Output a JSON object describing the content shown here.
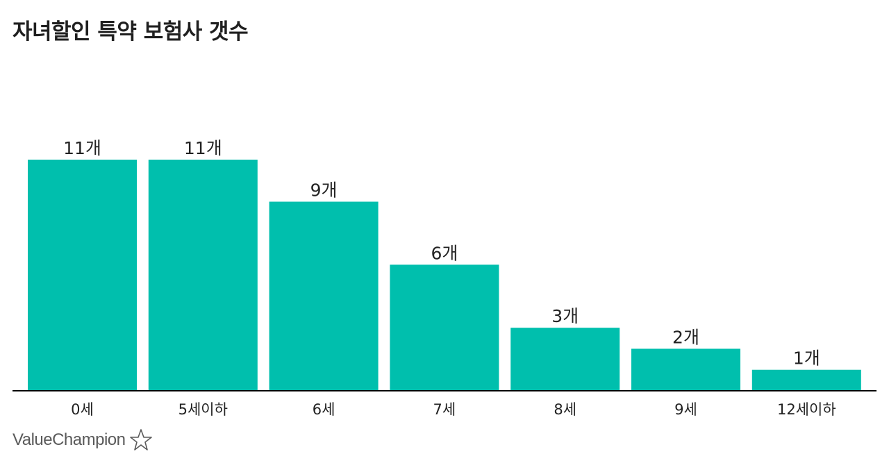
{
  "title": "자녀할인 특약 보험사 갯수",
  "brand": {
    "name": "ValueChampion",
    "icon": "star-outline-icon"
  },
  "colors": {
    "bar": "#00bfad",
    "axis": "#000000"
  },
  "chart_data": {
    "type": "bar",
    "categories": [
      "0세",
      "5세이하",
      "6세",
      "7세",
      "8세",
      "9세",
      "12세이하"
    ],
    "values": [
      11,
      11,
      9,
      6,
      3,
      2,
      1
    ],
    "data_labels": [
      "11개",
      "11개",
      "9개",
      "6개",
      "3개",
      "2개",
      "1개"
    ],
    "unit": "개",
    "title": "자녀할인 특약 보험사 갯수",
    "xlabel": "",
    "ylabel": "",
    "ylim": [
      0,
      11
    ],
    "grid": false,
    "legend": "none"
  }
}
